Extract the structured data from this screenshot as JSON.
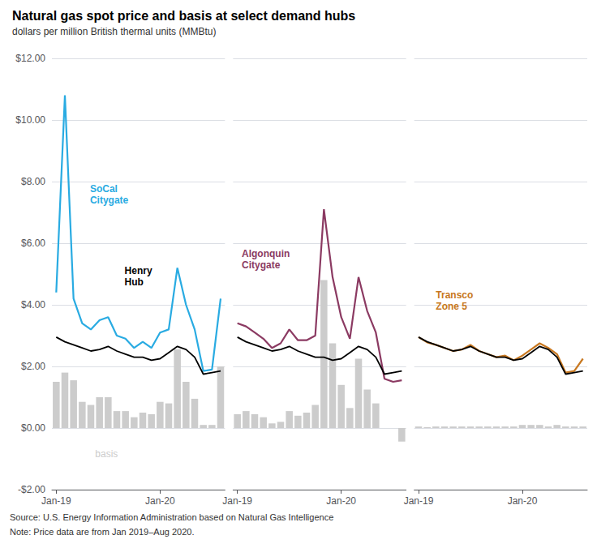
{
  "chart_data": [
    {
      "type": "bar",
      "title": "Natural gas spot price and basis at select demand hubs",
      "subtitle": "dollars per million British thermal units (MMBtu)",
      "source": "Source: U.S. Energy Information Administration based on Natural Gas Intelligence",
      "note": "Note: Price data are from Jan 2019–Aug 2020.",
      "categories": [
        "Jan-19",
        null,
        null,
        null,
        null,
        null,
        null,
        null,
        null,
        null,
        null,
        null,
        "Jan-20",
        null,
        null,
        null,
        null,
        null,
        null,
        null
      ],
      "series": [
        {
          "type": "bar",
          "color": "#CCCCCC",
          "values": [
            1.5,
            1.8,
            1.55,
            0.85,
            0.75,
            1.0,
            1.0,
            0.55,
            0.55,
            0.35,
            0.5,
            0.45,
            0.85,
            0.8,
            2.55,
            1.5,
            0.95,
            0.1,
            0.1,
            2.0
          ]
        },
        {
          "type": "line",
          "color": "#000000",
          "values": [
            2.95,
            2.8,
            2.7,
            2.6,
            2.5,
            2.55,
            2.65,
            2.5,
            2.4,
            2.3,
            2.3,
            2.2,
            2.25,
            2.45,
            2.65,
            2.55,
            2.3,
            1.75,
            1.8,
            1.85
          ]
        },
        {
          "type": "line",
          "color": "#29ABE2",
          "values": [
            4.4,
            10.8,
            4.2,
            3.4,
            3.2,
            3.5,
            3.6,
            3.0,
            2.9,
            2.6,
            2.8,
            2.6,
            3.1,
            3.2,
            5.2,
            4.0,
            3.2,
            1.85,
            1.9,
            4.2
          ]
        }
      ],
      "annotations": [
        {
          "text": "SoCal\nCitygate",
          "color": "#29ABE2"
        },
        {
          "text": "Henry\nHub",
          "color": "#000000"
        },
        {
          "text": "basis",
          "color": "#CCCCCC"
        }
      ],
      "ylim": [
        -2.0,
        12.0
      ],
      "yticks": [
        {
          "value": -2.0,
          "label": "-$2.00"
        },
        {
          "value": 0.0,
          "label": "$0.00"
        },
        {
          "value": 2.0,
          "label": "$2.00"
        },
        {
          "value": 4.0,
          "label": "$4.00"
        },
        {
          "value": 6.0,
          "label": "$6.00"
        },
        {
          "value": 8.0,
          "label": "$8.00"
        },
        {
          "value": 10.0,
          "label": "$10.00"
        },
        {
          "value": 12.0,
          "label": "$12.00"
        }
      ],
      "grid": true
    },
    {
      "type": "bar",
      "categories": [
        "Jan-19",
        null,
        null,
        null,
        null,
        null,
        null,
        null,
        null,
        null,
        null,
        null,
        "Jan-20",
        null,
        null,
        null,
        null,
        null,
        null,
        null
      ],
      "series": [
        {
          "type": "bar",
          "color": "#CCCCCC",
          "values": [
            0.45,
            0.55,
            0.45,
            0.35,
            0.15,
            0.2,
            0.55,
            0.4,
            0.5,
            0.75,
            4.8,
            2.75,
            1.4,
            0.65,
            2.25,
            1.25,
            0.8,
            0.0,
            0.0,
            -0.44
          ]
        },
        {
          "type": "line",
          "color": "#000000",
          "values": [
            2.95,
            2.8,
            2.7,
            2.6,
            2.5,
            2.55,
            2.65,
            2.5,
            2.4,
            2.3,
            2.3,
            2.2,
            2.25,
            2.45,
            2.65,
            2.55,
            2.3,
            1.75,
            1.8,
            1.85
          ]
        },
        {
          "type": "line",
          "color": "#8B3A62",
          "values": [
            3.4,
            3.3,
            3.1,
            2.9,
            2.6,
            2.75,
            3.2,
            2.85,
            2.85,
            3.0,
            7.1,
            4.9,
            3.6,
            2.9,
            4.9,
            3.8,
            3.1,
            1.6,
            1.5,
            1.55
          ]
        }
      ],
      "annotations": [
        {
          "text": "Algonquin\nCitygate",
          "color": "#8B3A62"
        }
      ],
      "ylim": [
        -2.0,
        12.0
      ],
      "yticks": [
        {
          "value": -2.0,
          "label": "-$2.00"
        },
        {
          "value": 0.0,
          "label": "$0.00"
        },
        {
          "value": 2.0,
          "label": "$2.00"
        },
        {
          "value": 4.0,
          "label": "$4.00"
        },
        {
          "value": 6.0,
          "label": "$6.00"
        },
        {
          "value": 8.0,
          "label": "$8.00"
        },
        {
          "value": 10.0,
          "label": "$10.00"
        },
        {
          "value": 12.0,
          "label": "$12.00"
        }
      ],
      "grid": true,
      "tick_labels": "x"
    },
    {
      "type": "bar",
      "categories": [
        "Jan-19",
        null,
        null,
        null,
        null,
        null,
        null,
        null,
        null,
        null,
        null,
        null,
        "Jan-20",
        null,
        null,
        null,
        null,
        null,
        null,
        null
      ],
      "series": [
        {
          "type": "bar",
          "color": "#CCCCCC",
          "values": [
            0.05,
            0.03,
            0.05,
            0.05,
            0.05,
            0.05,
            0.05,
            0.05,
            0.05,
            0.05,
            0.05,
            0.05,
            0.1,
            0.1,
            0.1,
            0.05,
            0.1,
            0.05,
            0.05,
            0.05
          ]
        },
        {
          "type": "line",
          "color": "#000000",
          "values": [
            2.95,
            2.8,
            2.7,
            2.6,
            2.5,
            2.55,
            2.65,
            2.5,
            2.4,
            2.3,
            2.3,
            2.2,
            2.25,
            2.45,
            2.65,
            2.55,
            2.3,
            1.75,
            1.8,
            1.85
          ]
        },
        {
          "type": "line",
          "color": "#C87820",
          "values": [
            2.95,
            2.78,
            2.7,
            2.6,
            2.5,
            2.55,
            2.7,
            2.5,
            2.4,
            2.3,
            2.35,
            2.2,
            2.35,
            2.55,
            2.75,
            2.6,
            2.4,
            1.8,
            1.85,
            2.25
          ]
        }
      ],
      "annotations": [
        {
          "text": "Transco\nZone 5",
          "color": "#C87820"
        }
      ],
      "ylim": [
        -2.0,
        12.0
      ],
      "yticks": [
        {
          "value": -2.0,
          "label": "-$2.00"
        },
        {
          "value": 0.0,
          "label": "$0.00"
        },
        {
          "value": 2.0,
          "label": "$2.00"
        },
        {
          "value": 4.0,
          "label": "$4.00"
        },
        {
          "value": 6.0,
          "label": "$6.00"
        },
        {
          "value": 8.0,
          "label": "$8.00"
        },
        {
          "value": 10.0,
          "label": "$10.00"
        },
        {
          "value": 12.0,
          "label": "$12.00"
        }
      ],
      "grid": true,
      "tick_labels": "x"
    }
  ]
}
